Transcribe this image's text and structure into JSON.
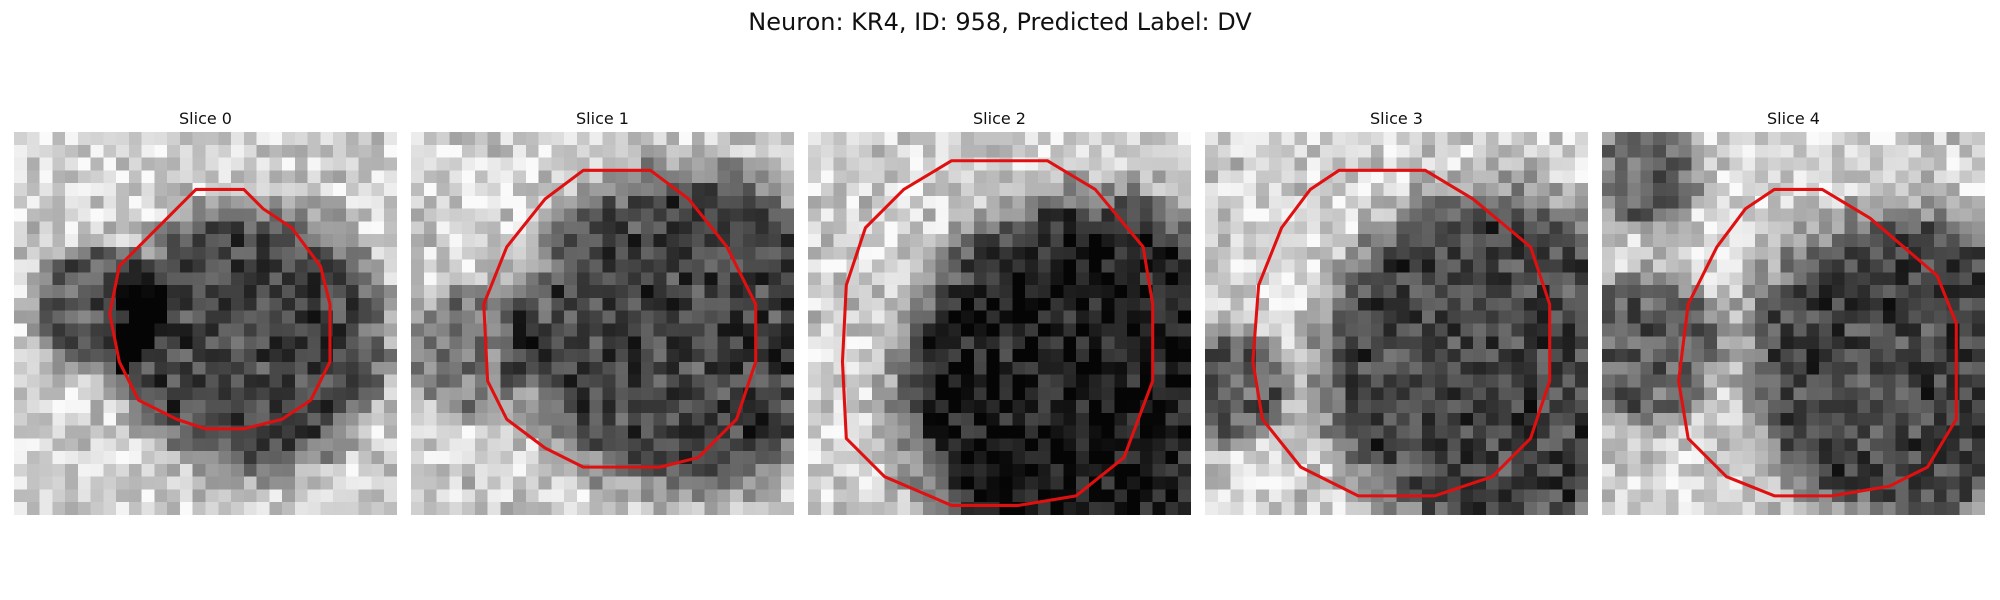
{
  "figure": {
    "title": "Neuron: KR4, ID: 958, Predicted Label: DV"
  },
  "overlay": {
    "contour_color": "#e01010"
  },
  "slices": [
    {
      "label": "Slice 0"
    },
    {
      "label": "Slice 1"
    },
    {
      "label": "Slice 2"
    },
    {
      "label": "Slice 3"
    },
    {
      "label": "Slice 4"
    }
  ]
}
